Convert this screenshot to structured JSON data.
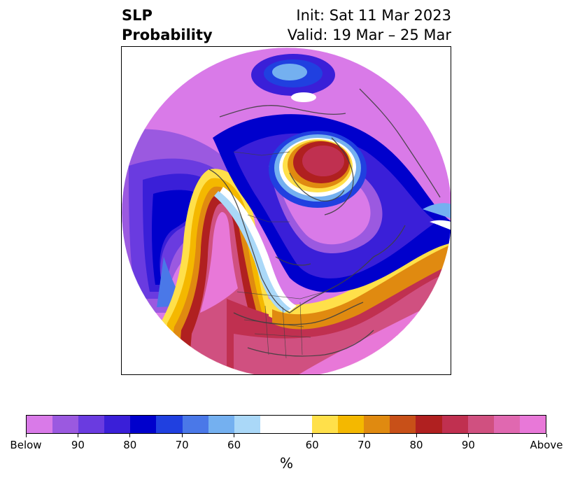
{
  "title": {
    "left_line1": "SLP",
    "left_line2": "Probability",
    "right_line1": "Init: Sat 11 Mar 2023",
    "right_line2": "Valid: 19 Mar – 25 Mar"
  },
  "colorbar": {
    "colors": [
      "#d97ae8",
      "#9b59e0",
      "#6a3be0",
      "#3a1fd8",
      "#0000cc",
      "#2040e0",
      "#4a78e8",
      "#74b0f0",
      "#aad8f8",
      "#ffffff",
      "#ffe04a",
      "#f4b800",
      "#e08a10",
      "#c85018",
      "#b02020",
      "#c03050",
      "#d05080",
      "#e068b0",
      "#e878d8"
    ],
    "widths": [
      1,
      1,
      1,
      1,
      1,
      1,
      1,
      1,
      1,
      2,
      1,
      1,
      1,
      1,
      1,
      1,
      1,
      1,
      1
    ],
    "tick_labels": [
      "Below",
      "90",
      "80",
      "70",
      "60",
      "60",
      "70",
      "80",
      "90",
      "Above"
    ],
    "label": "%"
  }
}
